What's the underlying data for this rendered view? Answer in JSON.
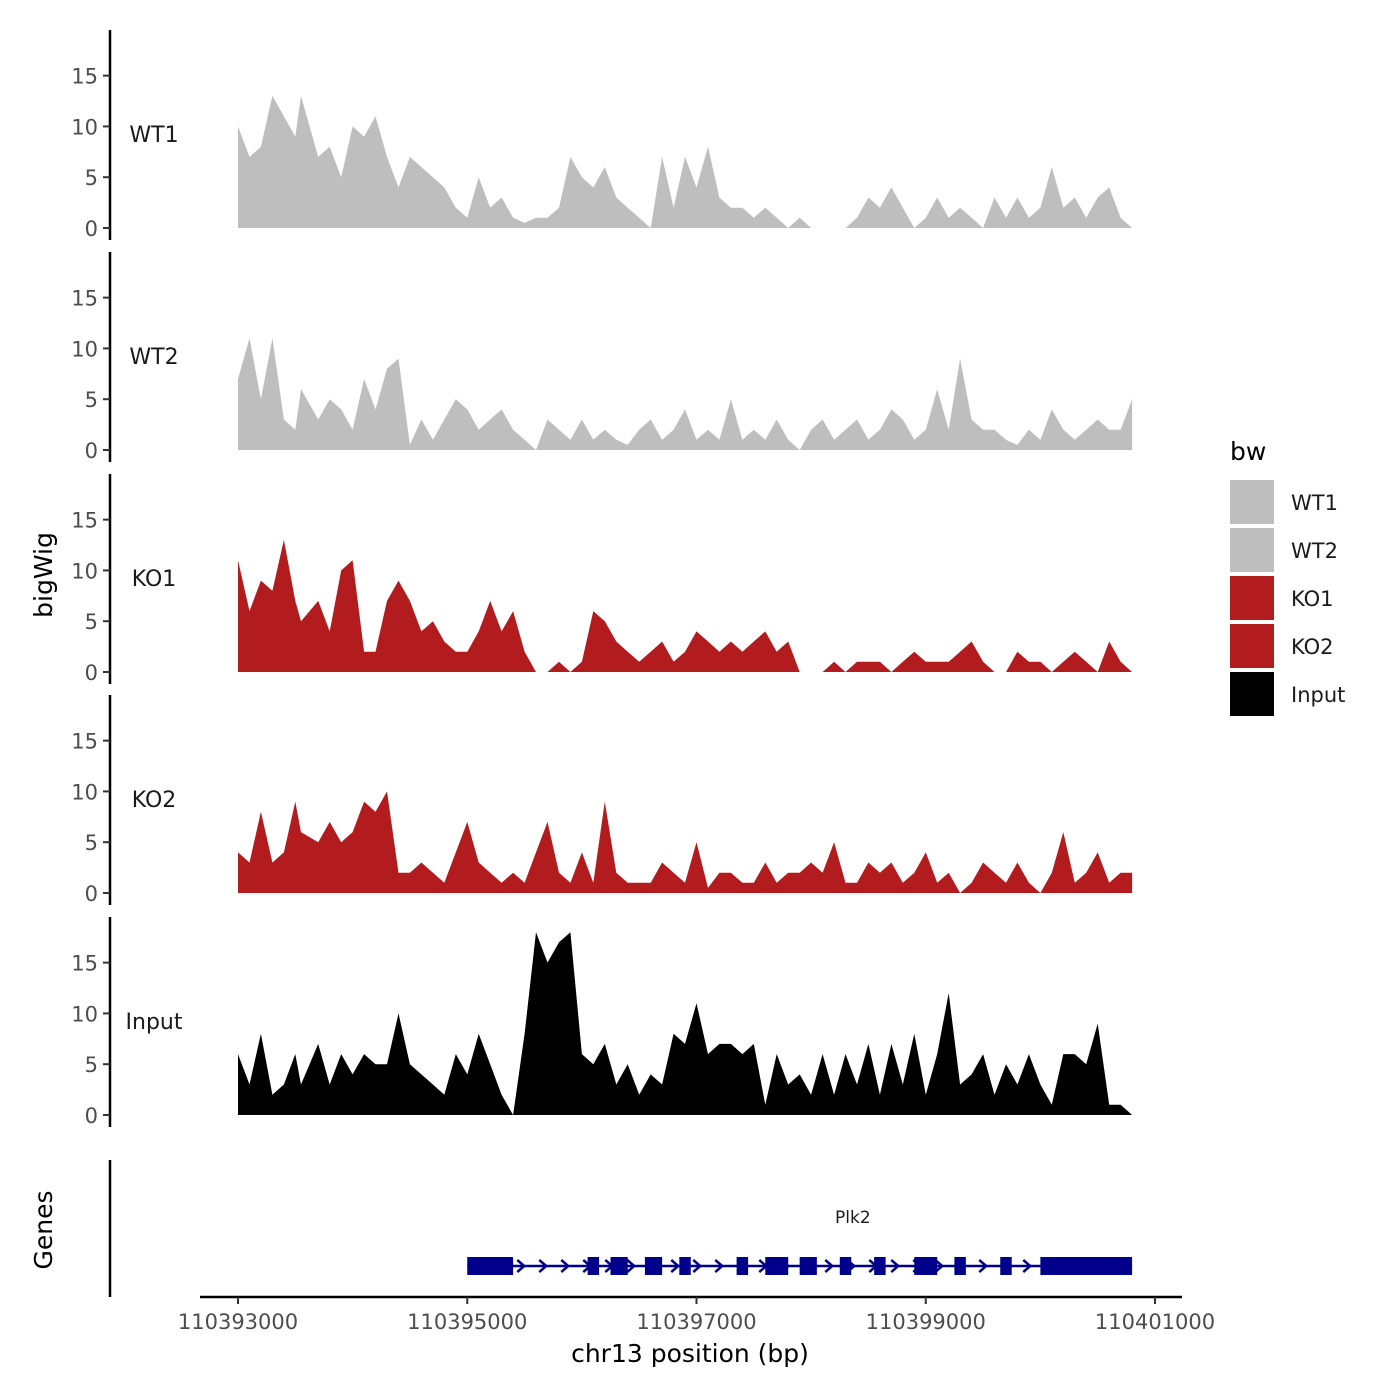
{
  "chart_data": {
    "type": "area",
    "ylabel": "bigWig",
    "xlabel": "chr13 position (bp)",
    "genes_label": "Genes",
    "x_range": [
      110393000,
      110400800
    ],
    "x_ticks": [
      110393000,
      110395000,
      110397000,
      110399000,
      110401000
    ],
    "x_tick_labels": [
      "110393000",
      "110395000",
      "110397000",
      "110399000",
      "110401000"
    ],
    "y_range": [
      0,
      19
    ],
    "y_ticks": [
      0,
      5,
      10,
      15
    ],
    "y_tick_labels": [
      "0",
      "5",
      "10",
      "15"
    ],
    "legend": {
      "title": "bw",
      "entries": [
        {
          "label": "WT1",
          "color": "#bebebe"
        },
        {
          "label": "WT2",
          "color": "#bebebe"
        },
        {
          "label": "KO1",
          "color": "#b21c1e"
        },
        {
          "label": "KO2",
          "color": "#b21c1e"
        },
        {
          "label": "Input",
          "color": "#000000"
        }
      ]
    },
    "series": [
      {
        "name": "WT1",
        "color": "#bebebe",
        "x": [
          110393000,
          110393100,
          110393200,
          110393300,
          110393400,
          110393500,
          110393550,
          110393700,
          110393800,
          110393900,
          110394000,
          110394100,
          110394200,
          110394300,
          110394400,
          110394500,
          110394600,
          110394700,
          110394800,
          110394900,
          110395000,
          110395100,
          110395200,
          110395300,
          110395400,
          110395500,
          110395600,
          110395700,
          110395800,
          110395900,
          110396000,
          110396100,
          110396200,
          110396300,
          110396400,
          110396500,
          110396600,
          110396700,
          110396800,
          110396900,
          110397000,
          110397100,
          110397200,
          110397300,
          110397400,
          110397500,
          110397600,
          110397700,
          110397800,
          110397900,
          110398000,
          110398100,
          110398200,
          110398300,
          110398400,
          110398500,
          110398600,
          110398700,
          110398800,
          110398900,
          110399000,
          110399100,
          110399200,
          110399300,
          110399400,
          110399500,
          110399600,
          110399700,
          110399800,
          110399900,
          110400000,
          110400100,
          110400200,
          110400300,
          110400400,
          110400500,
          110400600,
          110400700,
          110400800
        ],
        "values": [
          10,
          7,
          8,
          13,
          11,
          9,
          13,
          7,
          8,
          5,
          10,
          9,
          11,
          7,
          4,
          7,
          6,
          5,
          4,
          2,
          1,
          5,
          2,
          3,
          1,
          0.5,
          1,
          1,
          2,
          7,
          5,
          4,
          6,
          3,
          2,
          1,
          0,
          7,
          2,
          7,
          4,
          8,
          3,
          2,
          2,
          1,
          2,
          1,
          0,
          1,
          0,
          0,
          0,
          0,
          1,
          3,
          2,
          4,
          2,
          0,
          1,
          3,
          1,
          2,
          1,
          0,
          3,
          1,
          3,
          1,
          2,
          6,
          2,
          3,
          1,
          3,
          4,
          1,
          0
        ]
      },
      {
        "name": "WT2",
        "color": "#bebebe",
        "x": [
          110393000,
          110393100,
          110393200,
          110393300,
          110393400,
          110393500,
          110393550,
          110393700,
          110393800,
          110393900,
          110394000,
          110394100,
          110394200,
          110394300,
          110394400,
          110394500,
          110394600,
          110394700,
          110394800,
          110394900,
          110395000,
          110395100,
          110395200,
          110395300,
          110395400,
          110395500,
          110395600,
          110395700,
          110395800,
          110395900,
          110396000,
          110396100,
          110396200,
          110396300,
          110396400,
          110396500,
          110396600,
          110396700,
          110396800,
          110396900,
          110397000,
          110397100,
          110397200,
          110397300,
          110397400,
          110397500,
          110397600,
          110397700,
          110397800,
          110397900,
          110398000,
          110398100,
          110398200,
          110398300,
          110398400,
          110398500,
          110398600,
          110398700,
          110398800,
          110398900,
          110399000,
          110399100,
          110399200,
          110399300,
          110399400,
          110399500,
          110399600,
          110399700,
          110399800,
          110399900,
          110400000,
          110400100,
          110400200,
          110400300,
          110400400,
          110400500,
          110400600,
          110400700,
          110400800
        ],
        "values": [
          7,
          11,
          5,
          11,
          3,
          2,
          6,
          3,
          5,
          4,
          2,
          7,
          4,
          8,
          9,
          0.5,
          3,
          1,
          3,
          5,
          4,
          2,
          3,
          4,
          2,
          1,
          0,
          3,
          2,
          1,
          3,
          1,
          2,
          1,
          0.5,
          2,
          3,
          1,
          2,
          4,
          1,
          2,
          1,
          5,
          1,
          2,
          1,
          3,
          1,
          0,
          2,
          3,
          1,
          2,
          3,
          1,
          2,
          4,
          3,
          1,
          2,
          6,
          2,
          9,
          3,
          2,
          2,
          1,
          0.5,
          2,
          1,
          4,
          2,
          1,
          2,
          3,
          2,
          2,
          5
        ]
      },
      {
        "name": "KO1",
        "color": "#b21c1e",
        "x": [
          110393000,
          110393100,
          110393200,
          110393300,
          110393400,
          110393500,
          110393550,
          110393700,
          110393800,
          110393900,
          110394000,
          110394100,
          110394200,
          110394300,
          110394400,
          110394500,
          110394600,
          110394700,
          110394800,
          110394900,
          110395000,
          110395100,
          110395200,
          110395300,
          110395400,
          110395500,
          110395600,
          110395700,
          110395800,
          110395900,
          110396000,
          110396100,
          110396200,
          110396300,
          110396400,
          110396500,
          110396600,
          110396700,
          110396800,
          110396900,
          110397000,
          110397100,
          110397200,
          110397300,
          110397400,
          110397500,
          110397600,
          110397700,
          110397800,
          110397900,
          110398000,
          110398100,
          110398200,
          110398300,
          110398400,
          110398500,
          110398600,
          110398700,
          110398800,
          110398900,
          110399000,
          110399100,
          110399200,
          110399300,
          110399400,
          110399500,
          110399600,
          110399700,
          110399800,
          110399900,
          110400000,
          110400100,
          110400200,
          110400300,
          110400400,
          110400500,
          110400600,
          110400700,
          110400800
        ],
        "values": [
          11,
          6,
          9,
          8,
          13,
          7,
          5,
          7,
          4,
          10,
          11,
          2,
          2,
          7,
          9,
          7,
          4,
          5,
          3,
          2,
          2,
          4,
          7,
          4,
          6,
          2,
          0,
          0,
          1,
          0,
          1,
          6,
          5,
          3,
          2,
          1,
          2,
          3,
          1,
          2,
          4,
          3,
          2,
          3,
          2,
          3,
          4,
          2,
          3,
          0,
          0,
          0,
          1,
          0,
          1,
          1,
          1,
          0,
          1,
          2,
          1,
          1,
          1,
          2,
          3,
          1,
          0,
          0,
          2,
          1,
          1,
          0,
          1,
          2,
          1,
          0,
          3,
          1,
          0
        ]
      },
      {
        "name": "KO2",
        "color": "#b21c1e",
        "x": [
          110393000,
          110393100,
          110393200,
          110393300,
          110393400,
          110393500,
          110393550,
          110393700,
          110393800,
          110393900,
          110394000,
          110394100,
          110394200,
          110394300,
          110394400,
          110394500,
          110394600,
          110394700,
          110394800,
          110394900,
          110395000,
          110395100,
          110395200,
          110395300,
          110395400,
          110395500,
          110395600,
          110395700,
          110395800,
          110395900,
          110396000,
          110396100,
          110396200,
          110396300,
          110396400,
          110396500,
          110396600,
          110396700,
          110396800,
          110396900,
          110397000,
          110397100,
          110397200,
          110397300,
          110397400,
          110397500,
          110397600,
          110397700,
          110397800,
          110397900,
          110398000,
          110398100,
          110398200,
          110398300,
          110398400,
          110398500,
          110398600,
          110398700,
          110398800,
          110398900,
          110399000,
          110399100,
          110399200,
          110399300,
          110399400,
          110399500,
          110399600,
          110399700,
          110399800,
          110399900,
          110400000,
          110400100,
          110400200,
          110400300,
          110400400,
          110400500,
          110400600,
          110400700,
          110400800
        ],
        "values": [
          4,
          3,
          8,
          3,
          4,
          9,
          6,
          5,
          7,
          5,
          6,
          9,
          8,
          10,
          2,
          2,
          3,
          2,
          1,
          4,
          7,
          3,
          2,
          1,
          2,
          1,
          4,
          7,
          2,
          1,
          4,
          1,
          9,
          2,
          1,
          1,
          1,
          3,
          2,
          1,
          5,
          0.5,
          2,
          2,
          1,
          1,
          3,
          1,
          2,
          2,
          3,
          2,
          5,
          1,
          1,
          3,
          2,
          3,
          1,
          2,
          4,
          1,
          2,
          0,
          1,
          3,
          2,
          1,
          3,
          1,
          0,
          2,
          6,
          1,
          2,
          4,
          1,
          2,
          2
        ]
      },
      {
        "name": "Input",
        "color": "#000000",
        "x": [
          110393000,
          110393100,
          110393200,
          110393300,
          110393400,
          110393500,
          110393550,
          110393700,
          110393800,
          110393900,
          110394000,
          110394100,
          110394200,
          110394300,
          110394400,
          110394500,
          110394600,
          110394700,
          110394800,
          110394900,
          110395000,
          110395100,
          110395200,
          110395300,
          110395400,
          110395500,
          110395600,
          110395700,
          110395800,
          110395900,
          110396000,
          110396100,
          110396200,
          110396300,
          110396400,
          110396500,
          110396600,
          110396700,
          110396800,
          110396900,
          110397000,
          110397100,
          110397200,
          110397300,
          110397400,
          110397500,
          110397600,
          110397700,
          110397800,
          110397900,
          110398000,
          110398100,
          110398200,
          110398300,
          110398400,
          110398500,
          110398600,
          110398700,
          110398800,
          110398900,
          110399000,
          110399100,
          110399200,
          110399300,
          110399400,
          110399500,
          110399600,
          110399700,
          110399800,
          110399900,
          110400000,
          110400100,
          110400200,
          110400300,
          110400400,
          110400500,
          110400600,
          110400700,
          110400800
        ],
        "values": [
          6,
          3,
          8,
          2,
          3,
          6,
          3,
          7,
          3,
          6,
          4,
          6,
          5,
          5,
          10,
          5,
          4,
          3,
          2,
          6,
          4,
          8,
          5,
          2,
          0,
          8,
          18,
          15,
          17,
          18,
          6,
          5,
          7,
          3,
          5,
          2,
          4,
          3,
          8,
          7,
          11,
          6,
          7,
          7,
          6,
          7,
          1,
          6,
          3,
          4,
          2,
          6,
          2,
          6,
          3,
          7,
          2,
          7,
          3,
          8,
          2,
          6,
          12,
          3,
          4,
          6,
          2,
          5,
          3,
          6,
          3,
          1,
          6,
          6,
          5,
          9,
          1,
          1,
          0
        ]
      }
    ],
    "genes": [
      {
        "name": "Plk2",
        "start": 110395000,
        "end": 110400800,
        "strand": "+",
        "exons": [
          [
            110395000,
            110395400
          ],
          [
            110396050,
            110396150
          ],
          [
            110396250,
            110396400
          ],
          [
            110396550,
            110396700
          ],
          [
            110396850,
            110396950
          ],
          [
            110397350,
            110397450
          ],
          [
            110397600,
            110397800
          ],
          [
            110397900,
            110398050
          ],
          [
            110398250,
            110398350
          ],
          [
            110398550,
            110398650
          ],
          [
            110398900,
            110399100
          ],
          [
            110399250,
            110399350
          ],
          [
            110399650,
            110399750
          ],
          [
            110400000,
            110400800
          ]
        ]
      }
    ]
  }
}
